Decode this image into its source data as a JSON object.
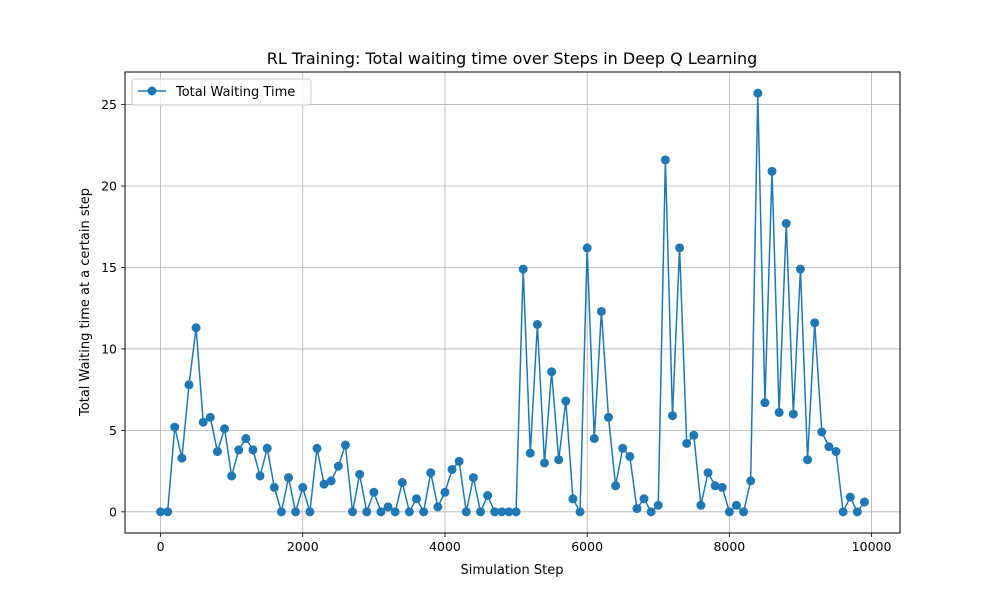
{
  "chart_data": {
    "type": "line",
    "title": "RL Training: Total waiting time over Steps in Deep Q Learning",
    "xlabel": "Simulation Step",
    "ylabel": "Total Waiting time at a certain step",
    "xlim": [
      -500,
      10400
    ],
    "ylim": [
      -1.3,
      27.0
    ],
    "xticks": [
      0,
      2000,
      4000,
      6000,
      8000,
      10000
    ],
    "xtick_labels": [
      "0",
      "2000",
      "4000",
      "6000",
      "8000",
      "10000"
    ],
    "yticks": [
      0,
      5,
      10,
      15,
      20,
      25
    ],
    "ytick_labels": [
      "0",
      "5",
      "10",
      "15",
      "20",
      "25"
    ],
    "grid": true,
    "legend_position": "upper-left",
    "marker": "circle",
    "series": [
      {
        "name": "Total Waiting Time",
        "color": "#1f77b4",
        "x": [
          0,
          100,
          200,
          300,
          400,
          500,
          600,
          700,
          800,
          900,
          1000,
          1100,
          1200,
          1300,
          1400,
          1500,
          1600,
          1700,
          1800,
          1900,
          2000,
          2100,
          2200,
          2300,
          2400,
          2500,
          2600,
          2700,
          2800,
          2900,
          3000,
          3100,
          3200,
          3300,
          3400,
          3500,
          3600,
          3700,
          3800,
          3900,
          4000,
          4100,
          4200,
          4300,
          4400,
          4500,
          4600,
          4700,
          4800,
          4900,
          5000,
          5100,
          5200,
          5300,
          5400,
          5500,
          5600,
          5700,
          5800,
          5900,
          6000,
          6100,
          6200,
          6300,
          6400,
          6500,
          6600,
          6700,
          6800,
          6900,
          7000,
          7100,
          7200,
          7300,
          7400,
          7500,
          7600,
          7700,
          7800,
          7900,
          8000,
          8100,
          8200,
          8300,
          8400,
          8500,
          8600,
          8700,
          8800,
          8900,
          9000,
          9100,
          9200,
          9300,
          9400,
          9500,
          9600,
          9700,
          9800,
          9900
        ],
        "y": [
          0,
          0,
          5.2,
          3.3,
          7.8,
          11.3,
          5.5,
          5.8,
          3.7,
          5.1,
          2.2,
          3.8,
          4.5,
          3.8,
          2.2,
          3.9,
          1.5,
          0,
          2.1,
          0,
          1.5,
          0,
          3.9,
          1.7,
          1.9,
          2.8,
          4.1,
          0,
          2.3,
          0,
          1.2,
          0,
          0.3,
          0,
          1.8,
          0,
          0.8,
          0,
          2.4,
          0.3,
          1.2,
          2.6,
          3.1,
          0,
          2.1,
          0,
          1.0,
          0,
          0,
          0,
          0,
          14.9,
          3.6,
          11.5,
          3.0,
          8.6,
          3.2,
          6.8,
          0.8,
          0,
          16.2,
          4.5,
          12.3,
          5.8,
          1.6,
          3.9,
          3.4,
          0.2,
          0.8,
          0,
          0.4,
          21.6,
          5.9,
          16.2,
          4.2,
          4.7,
          0.4,
          2.4,
          1.6,
          1.5,
          0,
          0.4,
          0,
          1.9,
          25.7,
          6.7,
          20.9,
          6.1,
          17.7,
          6.0,
          14.9,
          3.2,
          11.6,
          4.9,
          4.0,
          3.7,
          0,
          0.9,
          0,
          0.6
        ]
      }
    ]
  }
}
